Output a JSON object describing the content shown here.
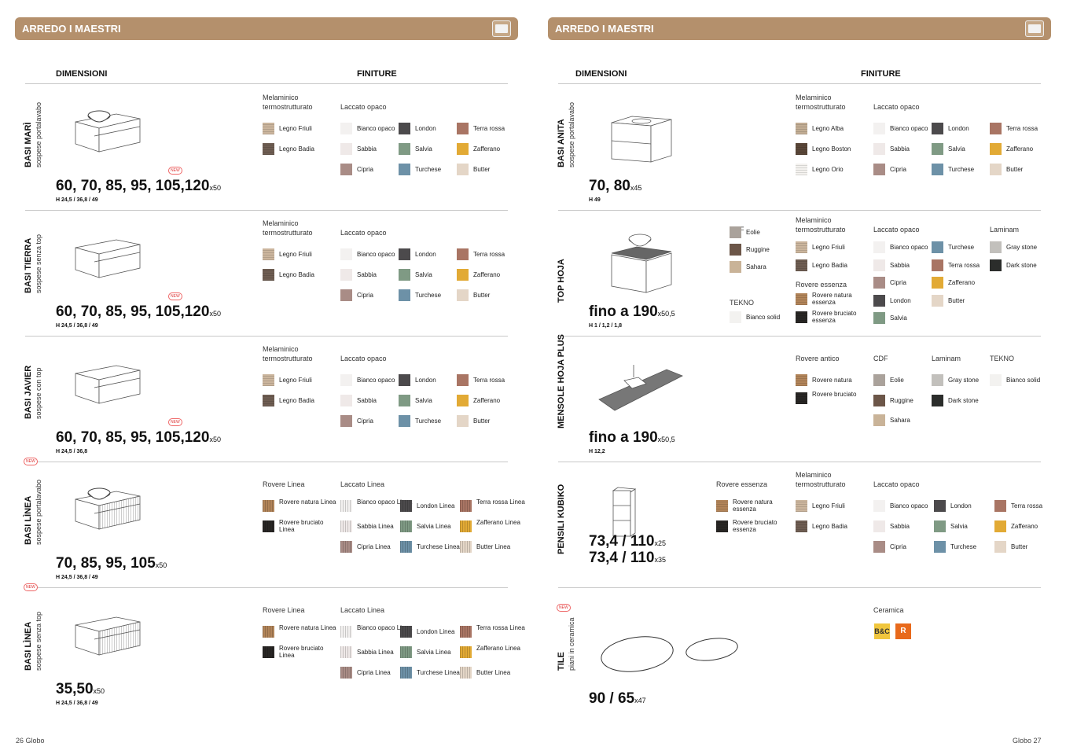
{
  "left": {
    "banner": "ARREDO I MAESTRI",
    "col_dimensioni": "DIMENSIONI",
    "col_finiture": "FINITURE",
    "footer": "26  Globo",
    "sections": [
      {
        "title": "BASI MARÌ",
        "subtitle": "sospese portalavabo",
        "dims": "60, 70, 85, 95, 105,120",
        "x": "x50",
        "h": "H 24,5 / 36,8 / 49",
        "new": "NEW"
      },
      {
        "title": "BASI  TIERRA",
        "subtitle": "sospese senza top",
        "dims": "60, 70, 85, 95, 105,120",
        "x": "x50",
        "h": "H 24,5 / 36,8 / 49",
        "new": "NEW"
      },
      {
        "title": "BASI  JAVIER",
        "subtitle": "sospese con top",
        "dims": "60, 70, 85, 95, 105,120",
        "x": "x50",
        "h": "H 24,5 / 36,8",
        "new": "NEW"
      },
      {
        "title": "BASI LÌNEA",
        "subtitle": "sospese portalavabo",
        "dims": "70, 85, 95, 105",
        "x": "x50",
        "h": "H 24,5 / 36,8 / 49",
        "new": "NEW"
      },
      {
        "title": "BASI  LÌNEA",
        "subtitle": "sospese senza top",
        "dims": "35,50",
        "x": "x50",
        "h": "H 24,5 / 36,8 / 49",
        "new": "NEW"
      }
    ],
    "g_melaminico": "Melaminico termostrutturato",
    "g_laccato": "Laccato opaco",
    "g_rovere_linea": "Rovere Linea",
    "g_laccato_linea": "Laccato Linea",
    "mel": [
      "Legno Friuli",
      "Legno Badia"
    ],
    "lacc": [
      "Bianco opaco",
      "Sabbia",
      "Cipria",
      "London",
      "Salvia",
      "Turchese",
      "Terra rossa",
      "Zafferano",
      "Butter"
    ],
    "rov_lin": [
      "Rovere natura Linea",
      "Rovere bruciato Linea"
    ],
    "lacc_lin": [
      "Bianco opaco Linea",
      "Sabbia Linea",
      "Cipria Linea",
      "London Linea",
      "Salvia Linea",
      "Turchese Linea",
      "Terra rossa Linea",
      "Zafferano Linea",
      "Butter Linea"
    ]
  },
  "right": {
    "banner": "ARREDO I MAESTRI",
    "col_dimensioni": "DIMENSIONI",
    "col_finiture": "FINITURE",
    "footer": "Globo    27",
    "s1": {
      "title": "BASI ANITA",
      "subtitle": "sospese portalavabo",
      "dims": "70, 80",
      "x": "x45",
      "h": "H 49",
      "g1": "Melaminico termostrutturato",
      "g2": "Laccato opaco",
      "mel": [
        "Legno Alba",
        "Legno Boston",
        "Legno Orio"
      ],
      "lacc": [
        "Bianco opaco",
        "Sabbia",
        "Cipria",
        "London",
        "Salvia",
        "Turchese",
        "Terra rossa",
        "Zafferano",
        "Butter"
      ]
    },
    "s2": {
      "title": "TOP  HOJA",
      "dims": "fino a 190",
      "x": "x50,5",
      "h": "H 1 / 1,2 / 1,8",
      "g_cdf": "CDF",
      "cdf": [
        "Eolie",
        "Ruggine",
        "Sahara"
      ],
      "g_tekno": "TEKNO",
      "tekno": [
        "Bianco solid"
      ],
      "g_mel": "Melaminico termostrutturato",
      "mel": [
        "Legno Friuli",
        "Legno Badia"
      ],
      "g_rov": "Rovere essenza",
      "rov": [
        "Rovere natura essenza",
        "Rovere bruciato essenza"
      ],
      "g_lacc": "Laccato opaco",
      "lacc": [
        "Bianco opaco",
        "Sabbia",
        "Cipria",
        "London",
        "Salvia",
        "Turchese",
        "Terra rossa",
        "Zafferano",
        "Butter"
      ],
      "g_lam": "Laminam",
      "lam": [
        "Gray stone",
        "Dark stone"
      ]
    },
    "s3": {
      "title": "MENSOLE  HOJA  PLUS",
      "dims": "fino a 190",
      "x": "x50,5",
      "h": "H 12,2",
      "g_rov": "Rovere antico",
      "rov": [
        "Rovere natura",
        "Rovere bruciato"
      ],
      "g_cdf": "CDF",
      "cdf": [
        "Eolie",
        "Ruggine",
        "Sahara"
      ],
      "g_lam": "Laminam",
      "lam": [
        "Gray stone",
        "Dark stone"
      ],
      "g_tekno": "TEKNO",
      "tekno": [
        "Bianco solid"
      ]
    },
    "s4": {
      "title": "PENSILI  KUBIKO",
      "dims1": "73,4 / 110",
      "x1": "x25",
      "dims2": "73,4 / 110",
      "x2": "x35",
      "g_rov": "Rovere essenza",
      "rov": [
        "Rovere natura essenza",
        "Rovere bruciato essenza"
      ],
      "g_mel": "Melaminico termostrutturato",
      "mel": [
        "Legno Friuli",
        "Legno Badia"
      ],
      "g_lacc": "Laccato opaco",
      "lacc": [
        "Bianco opaco",
        "Sabbia",
        "Cipria",
        "London",
        "Salvia",
        "Turchese",
        "Terra rossa",
        "Zafferano",
        "Butter"
      ]
    },
    "s5": {
      "title": "TILE",
      "subtitle": "piani in ceramica",
      "dims": "90 / 65",
      "x": "x47",
      "new": "NEW",
      "g_cer": "Ceramica",
      "logo_bc": "B&C",
      "logo_r": "R"
    }
  },
  "colors": {
    "banner": "#b4906c",
    "Legno Friuli": "#cbb59d",
    "Legno Badia": "#6e5d52",
    "Legno Alba": "#c2ad94",
    "Legno Boston": "#5a4638",
    "Legno Orio": "#f4f2ef",
    "Bianco opaco": "#f3f1f0",
    "Sabbia": "#efe9e8",
    "Cipria": "#a98c86",
    "London": "#4c4a4c",
    "Salvia": "#7f9a84",
    "Turchese": "#6d91a7",
    "Terra rossa": "#a97564",
    "Zafferano": "#e2aa35",
    "Butter": "#e4d6c7",
    "Rovere natura": "#b18459",
    "Rovere bruciato": "#282624",
    "Eolie": "#aaa29b",
    "Ruggine": "#6c5648",
    "Sahara": "#c9b398",
    "Gray stone": "#c2c0bc",
    "Dark stone": "#2b2d2b",
    "Bianco solid": "#f3f2f0"
  }
}
